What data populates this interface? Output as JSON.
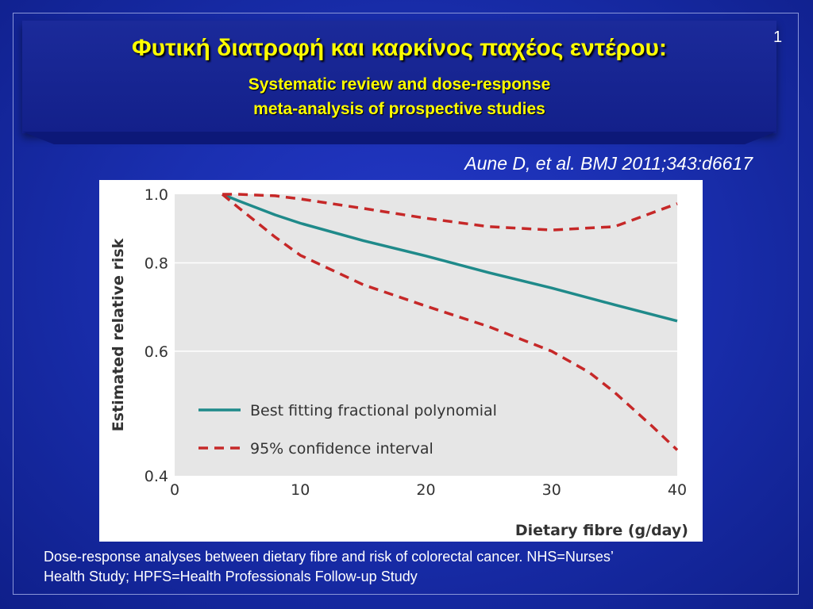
{
  "slide": {
    "title": "Φυτική διατροφή και καρκίνος παχέος εντέρου:",
    "subtitle_line1": "Systematic review and dose-response",
    "subtitle_line2": "meta-analysis of prospective studies",
    "slide_number": "1",
    "citation": "Aune D, et al. BMJ 2011;343:d6617",
    "caption_line1": "Dose-response analyses between dietary fibre and risk of colorectal cancer. NHS=Nurses’",
    "caption_line2": "Health Study; HPFS=Health Professionals Follow-up Study"
  },
  "colors": {
    "background": "#1a2fb0",
    "title": "#ffff00",
    "fit_line": "#1f8a8a",
    "ci_line": "#c62828",
    "plot_bg": "#e6e6e6"
  },
  "chart_data": {
    "type": "line",
    "xlabel": "Dietary fibre (g/day)",
    "ylabel": "Estimated relative risk",
    "xlim": [
      0,
      40
    ],
    "ylim": [
      0.4,
      1.0
    ],
    "y_scale": "log",
    "x_ticks": [
      0,
      10,
      20,
      30,
      40
    ],
    "y_ticks": [
      0.4,
      0.6,
      0.8,
      1.0
    ],
    "x_tick_labels": [
      "0",
      "10",
      "20",
      "30",
      "40"
    ],
    "y_tick_labels": [
      "0.4",
      "0.6",
      "0.8",
      "1.0"
    ],
    "grid": "horizontal",
    "legend_position": "bottom-left",
    "series": [
      {
        "name": "Best fitting fractional polynomial",
        "style": "solid",
        "x": [
          3.8,
          5,
          8,
          10,
          15,
          20,
          25,
          30,
          35,
          40
        ],
        "y": [
          1.0,
          0.98,
          0.935,
          0.91,
          0.86,
          0.818,
          0.775,
          0.737,
          0.698,
          0.662
        ]
      },
      {
        "name": "95% confidence interval",
        "style": "dashed",
        "x": [
          3.8,
          5,
          8,
          10,
          15,
          20,
          25,
          30,
          35,
          40
        ],
        "y": [
          1.0,
          1.0,
          0.995,
          0.985,
          0.955,
          0.925,
          0.9,
          0.89,
          0.9,
          0.97
        ]
      },
      {
        "name": "95% confidence interval",
        "style": "dashed",
        "legend": false,
        "x": [
          3.8,
          5,
          8,
          10,
          15,
          20,
          25,
          30,
          33,
          35,
          38,
          40
        ],
        "y": [
          1.0,
          0.96,
          0.87,
          0.82,
          0.745,
          0.695,
          0.65,
          0.6,
          0.56,
          0.525,
          0.47,
          0.435
        ]
      }
    ]
  }
}
